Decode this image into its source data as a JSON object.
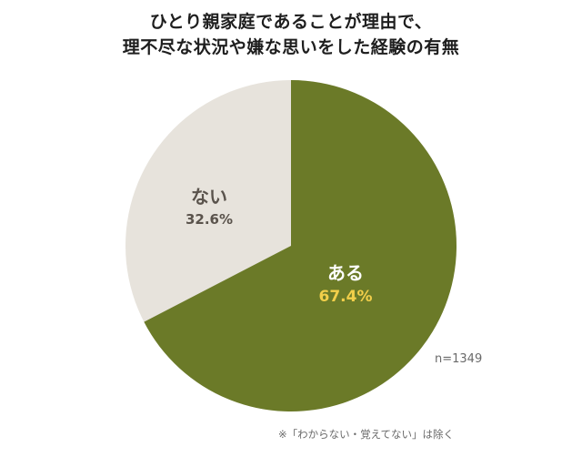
{
  "title": {
    "line1": "ひとり親家庭であることが理由で、",
    "line2": "理不尽な状況や嫌な思いをした経験の有無"
  },
  "colors": {
    "aru_slice": "#6b7a28",
    "nai_slice": "#e7e3dc",
    "aru_label": "#ffffff",
    "aru_value": "#f2cf4a",
    "nai_text": "#5a534c"
  },
  "labels": {
    "aru": "ある",
    "aru_value": "67.4%",
    "nai": "ない",
    "nai_value": "32.6%"
  },
  "sample_size": "n=1349",
  "footnote": "※「わからない・覚えてない」は除く",
  "chart_data": {
    "type": "pie",
    "title": "ひとり親家庭であることが理由で、理不尽な状況や嫌な思いをした経験の有無",
    "categories": [
      "ある",
      "ない"
    ],
    "values": [
      67.4,
      32.6
    ],
    "unit": "%",
    "colors": [
      "#6b7a28",
      "#e7e3dc"
    ],
    "start_angle": "12 o'clock, clockwise",
    "annotations": [
      "n=1349",
      "※「わからない・覚えてない」は除く"
    ],
    "legend": "none (inline labels)"
  }
}
